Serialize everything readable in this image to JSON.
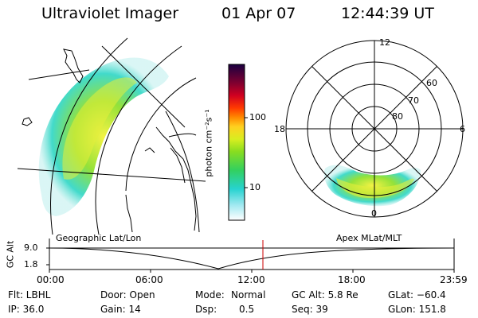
{
  "header": {
    "instrument": "Ultraviolet Imager",
    "date": "01 Apr 07",
    "time": "12:44:39 UT"
  },
  "colorbar": {
    "unit_label": "photon cm⁻²s⁻¹",
    "ticks": [
      "100",
      "10"
    ]
  },
  "polar_plot": {
    "mlt_labels": [
      "12",
      "18",
      "6",
      "0"
    ],
    "lat_labels": [
      "60",
      "70",
      "80"
    ]
  },
  "panels": {
    "left_label": "Geographic Lat/Lon",
    "right_label": "Apex MLat/MLT"
  },
  "altitude_plot": {
    "axis_title": "GC Alt",
    "y_ticks": [
      "9.0",
      "1.8"
    ],
    "x_ticks": [
      "00:00",
      "06:00",
      "12:00",
      "18:00",
      "23:59"
    ]
  },
  "footer": {
    "flt": "Flt: LBHL",
    "ip": "IP: 36.0",
    "door": "Door: Open",
    "gain": "Gain: 14",
    "mode_label": "Mode:",
    "mode_value": "Normal",
    "dsp_label": "Dsp:",
    "dsp_value": "0.5",
    "gc_alt": "GC Alt: 5.8 Re",
    "seq": "Seq: 39",
    "glat": "GLat: −60.4",
    "glon": "GLon: 151.8"
  },
  "colors": {
    "line": "#000000",
    "current_time_marker": "#cc0000"
  }
}
